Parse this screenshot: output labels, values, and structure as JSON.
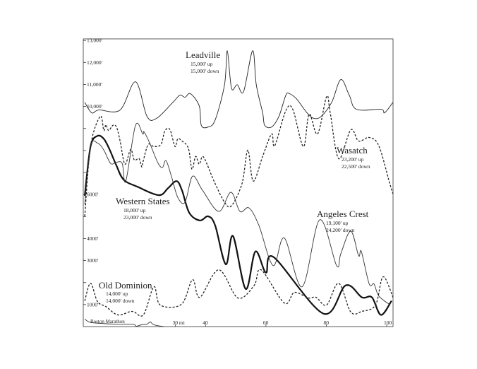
{
  "chart_data": {
    "type": "line",
    "title": "",
    "xlabel": "",
    "ylabel": "",
    "xlim": [
      -0.5,
      102.1
    ],
    "ylim": [
      0,
      13070
    ],
    "grid": false,
    "x_ticks": [
      {
        "value": 30,
        "label": "30 mi"
      },
      {
        "value": 40,
        "label": "40"
      },
      {
        "value": 60,
        "label": "60"
      },
      {
        "value": 80,
        "label": "80"
      },
      {
        "value": 100,
        "label": "100"
      }
    ],
    "y_ticks": [
      {
        "value": 13000,
        "label": "13,000'"
      },
      {
        "value": 12000,
        "label": "12,000'"
      },
      {
        "value": 11000,
        "label": "11,000'"
      },
      {
        "value": 10000,
        "label": "10,000'"
      },
      {
        "value": 9000,
        "label": ""
      },
      {
        "value": 8000,
        "label": ""
      },
      {
        "value": 7000,
        "label": ""
      },
      {
        "value": 6000,
        "label": "6000'"
      },
      {
        "value": 5000,
        "label": ""
      },
      {
        "value": 4000,
        "label": "4000'"
      },
      {
        "value": 3000,
        "label": "3000'"
      },
      {
        "value": 2000,
        "label": ""
      },
      {
        "value": 1000,
        "label": "1000'"
      }
    ],
    "series": [
      {
        "name": "Leadville",
        "up": "15,000' up",
        "down": "15,000' down",
        "style": "thin",
        "color": "#222222",
        "x": [
          0,
          2.3,
          4.7,
          11.7,
          16.8,
          20.6,
          23.8,
          29.2,
          31.5,
          33.2,
          35.0,
          37.9,
          38.6,
          40.9,
          43.2,
          46.3,
          47.2,
          48.6,
          50.5,
          52.6,
          55.6,
          56.8,
          58.9,
          59.6,
          61.9,
          64.3,
          66.6,
          67.8,
          70.1,
          73.6,
          75.9,
          78.3,
          81.8,
          84.8,
          87.6,
          90.0,
          98.1,
          99.3,
          102.1
        ],
        "y": [
          10190,
          9710,
          9840,
          9840,
          11120,
          9550,
          9460,
          10190,
          10510,
          10420,
          10580,
          10030,
          9140,
          9070,
          9390,
          10990,
          12530,
          10830,
          10990,
          10670,
          12530,
          10990,
          9710,
          9140,
          9070,
          9550,
          10510,
          10580,
          10350,
          9710,
          9460,
          9550,
          10190,
          11220,
          10510,
          9870,
          9870,
          9710,
          10190
        ]
      },
      {
        "name": "Wasatch",
        "up": "23,200' up",
        "down": "22,500' down",
        "style": "dashed",
        "color": "#222222",
        "x": [
          0,
          1.9,
          5.1,
          6.3,
          7.0,
          7.9,
          9.3,
          10.5,
          11.7,
          13.3,
          15.2,
          16.4,
          18.0,
          18.9,
          19.4,
          21.0,
          22.9,
          25.2,
          26.4,
          27.6,
          28.5,
          29.9,
          30.8,
          32.2,
          34.3,
          35.5,
          36.7,
          37.9,
          39.0,
          40.4,
          42.8,
          46.3,
          48.6,
          52.1,
          54.0,
          55.8,
          58.9,
          61.9,
          62.9,
          66.6,
          68.9,
          72.4,
          74.3,
          77.1,
          80.1,
          81.3,
          84.1,
          88.1,
          90.7,
          94.2,
          97.4,
          101.0,
          102.1
        ],
        "y": [
          5010,
          8180,
          9550,
          8910,
          9170,
          8910,
          9140,
          9070,
          8430,
          7380,
          8050,
          7570,
          7630,
          7250,
          7540,
          8270,
          8180,
          8270,
          8850,
          9010,
          8850,
          8180,
          8530,
          8430,
          8110,
          7150,
          7730,
          7380,
          7730,
          7410,
          6610,
          5650,
          5490,
          6510,
          8020,
          6610,
          7730,
          8750,
          8210,
          9810,
          9870,
          8180,
          9650,
          8750,
          10450,
          9710,
          7630,
          8940,
          8430,
          8590,
          8210,
          6510,
          6030
        ]
      },
      {
        "name": "Western States",
        "up": "18,000' up",
        "down": "23,000' down",
        "style": "thick",
        "color": "#111111",
        "x": [
          0,
          1.9,
          4.2,
          6.3,
          8.2,
          10.5,
          12.9,
          17.5,
          24.5,
          27.6,
          30.4,
          32.2,
          34.6,
          38.1,
          40.9,
          43.2,
          46.7,
          49.1,
          53.3,
          56.5,
          60.0,
          62.6,
          79.0,
          86.4,
          91.8,
          95.1,
          98.1,
          101.6
        ],
        "y": [
          5940,
          8180,
          8660,
          8530,
          8050,
          7310,
          6670,
          6350,
          5970,
          6290,
          6610,
          6190,
          5170,
          4820,
          5010,
          4590,
          2830,
          4110,
          1710,
          3410,
          2450,
          3150,
          590,
          1870,
          1330,
          1330,
          530,
          1170
        ]
      },
      {
        "name": "Angeles Crest",
        "up": "19,100' up",
        "down": "24,200' down",
        "style": "thin",
        "color": "#333333",
        "x": [
          0,
          1.9,
          4.2,
          6.3,
          8.6,
          10.5,
          12.4,
          13.6,
          16.8,
          19.2,
          19.6,
          21.5,
          24.1,
          25.7,
          26.9,
          28.7,
          30.8,
          33.2,
          35.7,
          39.0,
          44.4,
          48.4,
          51.4,
          54.4,
          57.7,
          62.4,
          66.1,
          72.0,
          77.8,
          83.4,
          84.8,
          88.1,
          90.7,
          91.6,
          94.2,
          95.8,
          97.4,
          101.2
        ],
        "y": [
          5550,
          8180,
          8340,
          8020,
          7410,
          7470,
          7410,
          6610,
          9140,
          8750,
          8850,
          8340,
          7470,
          7220,
          7540,
          6830,
          5870,
          5650,
          6830,
          6190,
          5230,
          6100,
          5230,
          5390,
          4590,
          2770,
          4020,
          1810,
          4850,
          2770,
          3310,
          4340,
          3220,
          3410,
          1940,
          1940,
          1390,
          980
        ]
      },
      {
        "name": "Old Dominion",
        "up": "14,000' up",
        "down": "14,000' down",
        "style": "dashed",
        "color": "#222222",
        "x": [
          0,
          1.9,
          4.2,
          7.0,
          11.0,
          15.7,
          19.4,
          22.9,
          25.0,
          32.0,
          35.7,
          38.1,
          44.4,
          50.7,
          56.1,
          58.4,
          66.1,
          69.4,
          74.1,
          76.6,
          80.1,
          84.1,
          88.1,
          91.8,
          96.3,
          98.8,
          102.1
        ],
        "y": [
          1170,
          1970,
          1140,
          910,
          530,
          690,
          530,
          1810,
          980,
          1010,
          2130,
          1330,
          2580,
          1300,
          1870,
          2580,
          1070,
          1550,
          1300,
          1330,
          980,
          1970,
          660,
          690,
          980,
          2260,
          1330
        ]
      },
      {
        "name": "Boston Marathon",
        "style": "thin",
        "color": "#333333",
        "x": [
          0,
          2.3,
          10.5,
          15.9,
          17.1,
          18.7,
          20.6,
          21.7,
          22.9,
          26.2
        ],
        "y": [
          340,
          180,
          110,
          110,
          20,
          80,
          110,
          210,
          80,
          0
        ]
      }
    ]
  }
}
